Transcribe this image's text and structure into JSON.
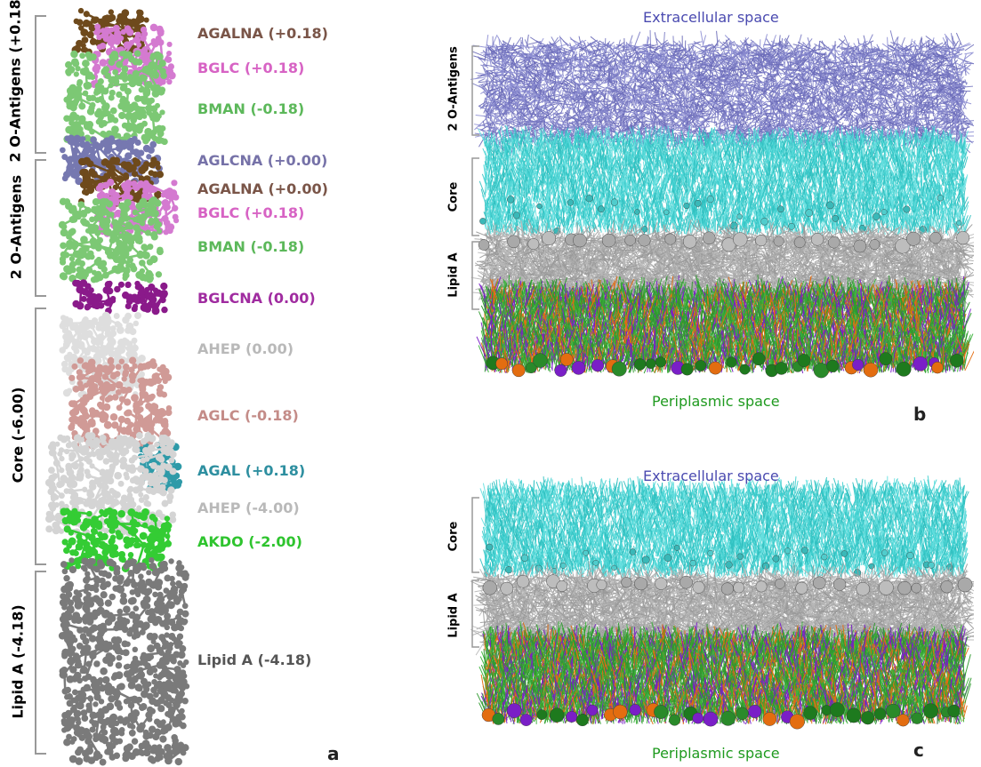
{
  "panel_a": {
    "letter": "a",
    "groups": [
      {
        "key": "antigens",
        "label": "2 O-Antigens (+0.18)"
      },
      {
        "key": "antigens2",
        "label": "2 O-Antigens"
      },
      {
        "key": "core",
        "label": "Core (-6.00)"
      },
      {
        "key": "lipid",
        "label": "Lipid A (-4.18)"
      }
    ],
    "residues": [
      {
        "label": "AGALNA (+0.18)",
        "color": "#7a5548"
      },
      {
        "label": "BGLC (+0.18)",
        "color": "#d763c4"
      },
      {
        "label": "BMAN (-0.18)",
        "color": "#5cb85a"
      },
      {
        "label": "AGLCNA (+0.00)",
        "color": "#7672a8"
      },
      {
        "label": "AGALNA (+0.00)",
        "color": "#7a5548"
      },
      {
        "label": "BGLC (+0.18)",
        "color": "#d763c4"
      },
      {
        "label": "BMAN (-0.18)",
        "color": "#5cb85a"
      },
      {
        "label": "BGLCNA (0.00)",
        "color": "#a02ca0"
      },
      {
        "label": "AHEP (0.00)",
        "color": "#b9b9b9"
      },
      {
        "label": "AGLC (-0.18)",
        "color": "#c48c88"
      },
      {
        "label": "AGAL (+0.18)",
        "color": "#2e8fa0"
      },
      {
        "label": "AHEP (-4.00)",
        "color": "#b9b9b9"
      },
      {
        "label": "AKDO (-2.00)",
        "color": "#2ec42e"
      },
      {
        "label": "Lipid A (-4.18)",
        "color": "#555555"
      }
    ]
  },
  "panel_b": {
    "letter": "b",
    "top_label": "Extracellular space",
    "bottom_label": "Periplasmic space",
    "regions": [
      "2 O-Antigens",
      "Core",
      "Lipid A"
    ]
  },
  "panel_c": {
    "letter": "c",
    "top_label": "Extracellular space",
    "bottom_label": "Periplasmic space",
    "regions": [
      "Core",
      "Lipid A"
    ]
  },
  "colors": {
    "antigen": "#7b7cc4",
    "core": "#40d0d0",
    "lipid": "#a8a8a8",
    "phospholipid": "#2f9a2f",
    "orange": "#e36d10",
    "purple": "#7a1fc7",
    "space_top": "#4a4ab0",
    "space_bottom": "#1f9a1f"
  }
}
